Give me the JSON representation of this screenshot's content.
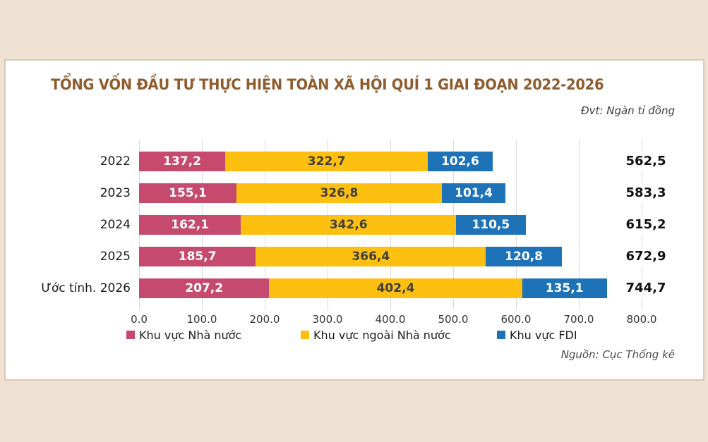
{
  "page": {
    "background_color": "#f0e2d3",
    "panel_color": "#ffffff",
    "panel_border_color": "#dcc9b6"
  },
  "header": {
    "title": "TỔNG VỐN ĐẦU TƯ THỰC HIỆN TOÀN XÃ HỘI QUÍ 1 GIAI ĐOẠN 2022-2026",
    "title_color": "#8f5c2e",
    "unit_note": "Đvt: Ngàn tỉ đồng"
  },
  "chart_data": {
    "type": "bar",
    "orientation": "horizontal",
    "stacked": true,
    "grid": true,
    "legend_position": "bottom",
    "xlim": [
      0,
      800
    ],
    "x_ticks": [
      "0.0",
      "100.0",
      "200.0",
      "300.0",
      "400.0",
      "500.0",
      "600.0",
      "700.0",
      "800.0"
    ],
    "x_tick_values": [
      0,
      100,
      200,
      300,
      400,
      500,
      600,
      700,
      800
    ],
    "categories": [
      "2022",
      "2023",
      "2024",
      "2025",
      "Ước tính. 2026"
    ],
    "series": [
      {
        "name": "Khu vực Nhà nước",
        "color": "#c64a6e",
        "label_color": "#ffffff",
        "values": [
          137.2,
          155.1,
          162.1,
          185.7,
          207.2
        ],
        "labels": [
          "137,2",
          "155,1",
          "162,1",
          "185,7",
          "207,2"
        ]
      },
      {
        "name": "Khu vực ngoài Nhà nước",
        "color": "#fdc011",
        "label_color": "#3f3f3f",
        "values": [
          322.7,
          326.8,
          342.6,
          366.4,
          402.4
        ],
        "labels": [
          "322,7",
          "326,8",
          "342,6",
          "366,4",
          "402,4"
        ]
      },
      {
        "name": "Khu vực FDI",
        "color": "#1d72b8",
        "label_color": "#ffffff",
        "values": [
          102.6,
          101.4,
          110.5,
          120.8,
          135.1
        ],
        "labels": [
          "102,6",
          "101,4",
          "110,5",
          "120,8",
          "135,1"
        ]
      }
    ],
    "total_values": [
      562.5,
      583.3,
      615.2,
      672.9,
      744.7
    ],
    "totals": [
      "562,5",
      "583,3",
      "615,2",
      "672,9",
      "744,7"
    ],
    "gridline_color": "#d9d9d9"
  },
  "footer": {
    "source": "Nguồn: Cục Thống kê"
  }
}
